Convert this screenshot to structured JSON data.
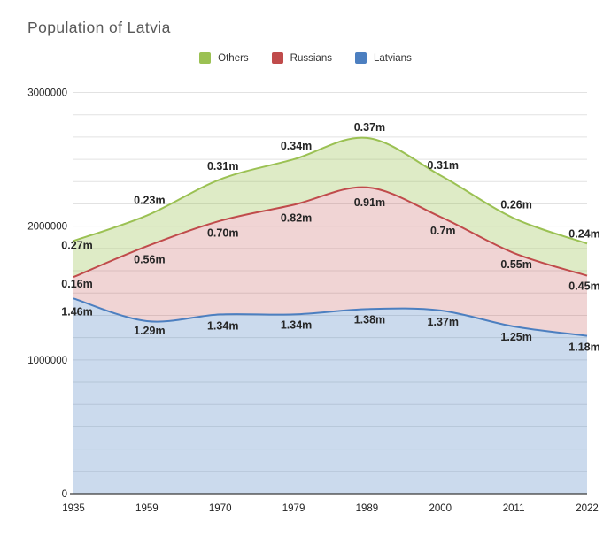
{
  "title": "Population of Latvia",
  "legend": [
    {
      "label": "Others",
      "color": "#9bc153",
      "icon": "others-swatch-icon"
    },
    {
      "label": "Russians",
      "color": "#c04b4b",
      "icon": "russians-swatch-icon"
    },
    {
      "label": "Latvians",
      "color": "#4c7fc0",
      "icon": "latvians-swatch-icon"
    }
  ],
  "chart_data": {
    "type": "area",
    "stacked": true,
    "title": "Population of Latvia",
    "xlabel": "",
    "ylabel": "",
    "categories": [
      "1935",
      "1959",
      "1970",
      "1979",
      "1989",
      "2000",
      "2011",
      "2022"
    ],
    "series": [
      {
        "name": "Latvians",
        "color": "#4c7fc0",
        "fill": "rgba(76,127,192,0.29)",
        "values_millions": [
          1.46,
          1.29,
          1.34,
          1.34,
          1.38,
          1.37,
          1.25,
          1.18
        ],
        "labels": [
          "1.46m",
          "1.29m",
          "1.34m",
          "1.34m",
          "1.38m",
          "1.37m",
          "1.25m",
          "1.18m"
        ]
      },
      {
        "name": "Russians",
        "color": "#c04b4b",
        "fill": "rgba(192,75,75,0.24)",
        "values_millions": [
          0.16,
          0.56,
          0.7,
          0.82,
          0.91,
          0.7,
          0.55,
          0.45
        ],
        "labels": [
          "0.16m",
          "0.56m",
          "0.70m",
          "0.82m",
          "0.91m",
          "0.7m",
          "0.55m",
          "0.45m"
        ]
      },
      {
        "name": "Others",
        "color": "#9bc153",
        "fill": "rgba(155,193,83,0.33)",
        "values_millions": [
          0.27,
          0.23,
          0.31,
          0.34,
          0.37,
          0.31,
          0.26,
          0.24
        ],
        "labels": [
          "0.27m",
          "0.23m",
          "0.31m",
          "0.34m",
          "0.37m",
          "0.31m",
          "0.26m",
          "0.24m"
        ]
      }
    ],
    "ylim": [
      0,
      3000000
    ],
    "ytick_labels": [
      "0",
      "1000000",
      "2000000",
      "3000000"
    ],
    "minor_gridlines_per_major": 6,
    "grid": true,
    "legend_position": "top",
    "legend_order": [
      "Others",
      "Russians",
      "Latvians"
    ]
  },
  "colors": {
    "gridline": "#e2e2e2",
    "axis_baseline": "#3a3a3a",
    "tick_text": "#222222",
    "data_label": "#262626",
    "title_text": "#595959"
  }
}
